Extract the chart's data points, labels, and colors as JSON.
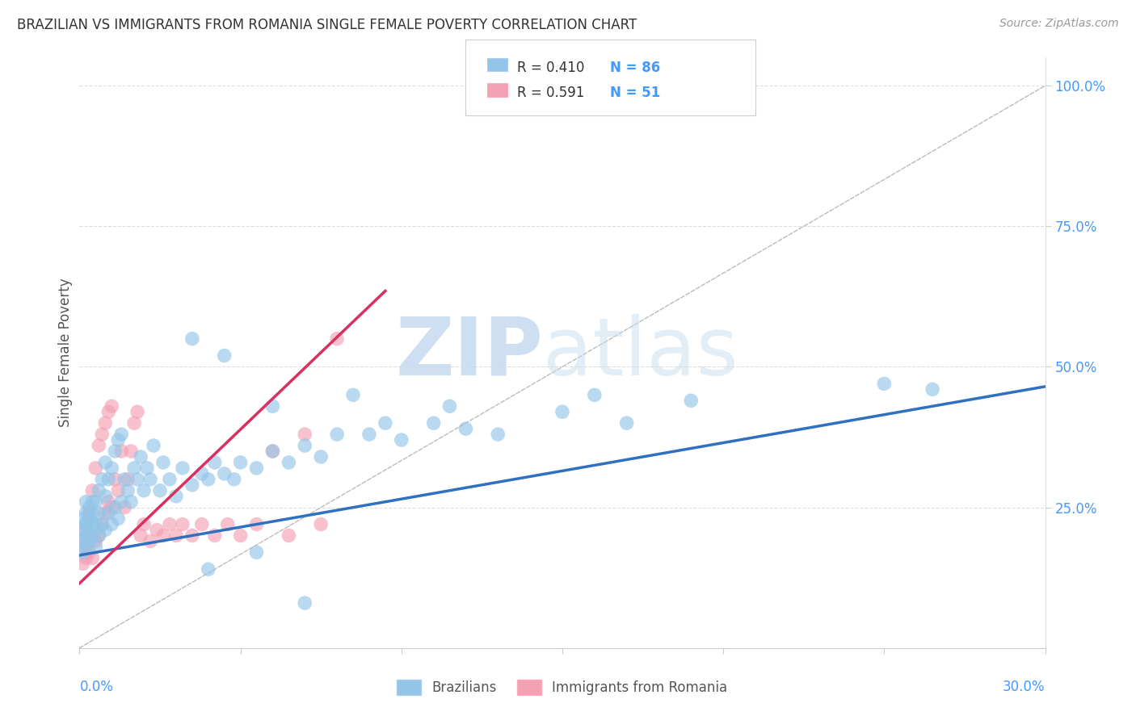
{
  "title": "BRAZILIAN VS IMMIGRANTS FROM ROMANIA SINGLE FEMALE POVERTY CORRELATION CHART",
  "source": "Source: ZipAtlas.com",
  "ylabel": "Single Female Poverty",
  "xlim": [
    0.0,
    0.3
  ],
  "ylim": [
    0.0,
    1.05
  ],
  "blue_color": "#92C5E8",
  "pink_color": "#F4A0B5",
  "line_blue": "#3070C0",
  "line_pink": "#D83060",
  "diagonal_color": "#BBBBBB",
  "background": "#FFFFFF",
  "grid_color": "#DDDDDD",
  "blue_line_x": [
    0.0,
    0.3
  ],
  "blue_line_y": [
    0.165,
    0.465
  ],
  "pink_line_x": [
    0.0,
    0.095
  ],
  "pink_line_y": [
    0.115,
    0.635
  ],
  "blue_points_x": [
    0.001,
    0.001,
    0.001,
    0.001,
    0.002,
    0.002,
    0.002,
    0.002,
    0.002,
    0.003,
    0.003,
    0.003,
    0.003,
    0.004,
    0.004,
    0.004,
    0.004,
    0.005,
    0.005,
    0.005,
    0.006,
    0.006,
    0.006,
    0.007,
    0.007,
    0.008,
    0.008,
    0.008,
    0.009,
    0.009,
    0.01,
    0.01,
    0.011,
    0.011,
    0.012,
    0.012,
    0.013,
    0.013,
    0.014,
    0.015,
    0.016,
    0.017,
    0.018,
    0.019,
    0.02,
    0.021,
    0.022,
    0.023,
    0.025,
    0.026,
    0.028,
    0.03,
    0.032,
    0.035,
    0.038,
    0.04,
    0.042,
    0.045,
    0.048,
    0.05,
    0.055,
    0.06,
    0.065,
    0.07,
    0.075,
    0.08,
    0.09,
    0.1,
    0.11,
    0.12,
    0.13,
    0.15,
    0.17,
    0.19,
    0.06,
    0.085,
    0.095,
    0.115,
    0.035,
    0.045,
    0.25,
    0.265,
    0.04,
    0.055,
    0.07,
    0.16
  ],
  "blue_points_y": [
    0.17,
    0.19,
    0.21,
    0.23,
    0.18,
    0.2,
    0.22,
    0.24,
    0.26,
    0.19,
    0.21,
    0.23,
    0.25,
    0.2,
    0.22,
    0.24,
    0.26,
    0.18,
    0.22,
    0.26,
    0.2,
    0.24,
    0.28,
    0.22,
    0.3,
    0.21,
    0.27,
    0.33,
    0.24,
    0.3,
    0.22,
    0.32,
    0.25,
    0.35,
    0.23,
    0.37,
    0.26,
    0.38,
    0.3,
    0.28,
    0.26,
    0.32,
    0.3,
    0.34,
    0.28,
    0.32,
    0.3,
    0.36,
    0.28,
    0.33,
    0.3,
    0.27,
    0.32,
    0.29,
    0.31,
    0.3,
    0.33,
    0.31,
    0.3,
    0.33,
    0.32,
    0.35,
    0.33,
    0.36,
    0.34,
    0.38,
    0.38,
    0.37,
    0.4,
    0.39,
    0.38,
    0.42,
    0.4,
    0.44,
    0.43,
    0.45,
    0.4,
    0.43,
    0.55,
    0.52,
    0.47,
    0.46,
    0.14,
    0.17,
    0.08,
    0.45
  ],
  "pink_points_x": [
    0.001,
    0.001,
    0.001,
    0.002,
    0.002,
    0.002,
    0.003,
    0.003,
    0.003,
    0.004,
    0.004,
    0.004,
    0.005,
    0.005,
    0.006,
    0.006,
    0.007,
    0.007,
    0.008,
    0.008,
    0.009,
    0.009,
    0.01,
    0.01,
    0.011,
    0.012,
    0.013,
    0.014,
    0.015,
    0.016,
    0.017,
    0.018,
    0.019,
    0.02,
    0.022,
    0.024,
    0.026,
    0.028,
    0.03,
    0.032,
    0.035,
    0.038,
    0.042,
    0.046,
    0.05,
    0.055,
    0.065,
    0.075,
    0.06,
    0.07,
    0.08
  ],
  "pink_points_y": [
    0.15,
    0.18,
    0.21,
    0.16,
    0.19,
    0.22,
    0.17,
    0.2,
    0.24,
    0.16,
    0.2,
    0.28,
    0.19,
    0.32,
    0.2,
    0.36,
    0.22,
    0.38,
    0.24,
    0.4,
    0.26,
    0.42,
    0.25,
    0.43,
    0.3,
    0.28,
    0.35,
    0.25,
    0.3,
    0.35,
    0.4,
    0.42,
    0.2,
    0.22,
    0.19,
    0.21,
    0.2,
    0.22,
    0.2,
    0.22,
    0.2,
    0.22,
    0.2,
    0.22,
    0.2,
    0.22,
    0.2,
    0.22,
    0.35,
    0.38,
    0.55
  ]
}
